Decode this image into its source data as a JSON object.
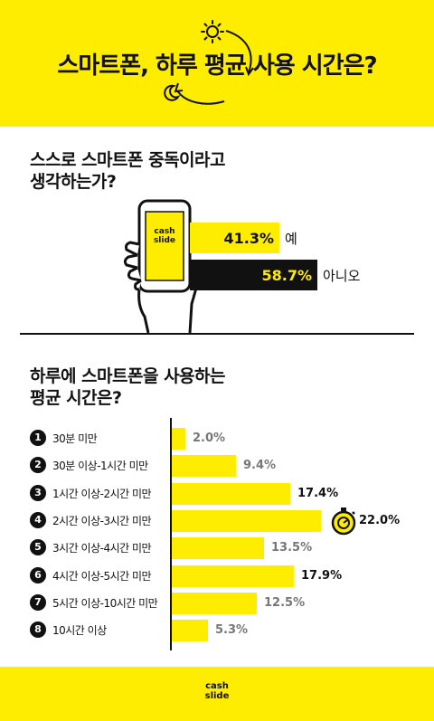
{
  "header": {
    "title": "스마트폰, 하루 평균 사용 시간은?"
  },
  "question1": {
    "title_line1": "스스로 스마트폰 중독이라고",
    "title_line2": "생각하는가?",
    "phone_brand_line1": "cash",
    "phone_brand_line2": "slide"
  },
  "question2": {
    "title_line1": "하루에 스마트폰을 사용하는",
    "title_line2": "평균 시간은?"
  },
  "chart_data": [
    {
      "type": "bar",
      "orientation": "horizontal",
      "categories": [
        "예",
        "아니오"
      ],
      "values": [
        41.3,
        58.7
      ],
      "value_labels": [
        "41.3%",
        "58.7%"
      ],
      "colors": [
        "#ffed00",
        "#111111"
      ],
      "xlim": [
        0,
        100
      ]
    },
    {
      "type": "bar",
      "orientation": "horizontal",
      "numbers": [
        "1",
        "2",
        "3",
        "4",
        "5",
        "6",
        "7",
        "8"
      ],
      "categories": [
        "30분 미만",
        "30분 이상-1시간 미만",
        "1시간 이상-2시간 미만",
        "2시간 이상-3시간 미만",
        "3시간 이상-4시간 미만",
        "4시간 이상-5시간 미만",
        "5시간 이상-10시간 미만",
        "10시간 이상"
      ],
      "values": [
        2.0,
        9.4,
        17.4,
        22.0,
        13.5,
        17.9,
        12.5,
        5.3
      ],
      "value_labels": [
        "2.0%",
        "9.4%",
        "17.4%",
        "22.0%",
        "13.5%",
        "17.9%",
        "12.5%",
        "5.3%"
      ],
      "highlight": [
        false,
        false,
        true,
        true,
        false,
        true,
        false,
        false
      ],
      "xlim": [
        0,
        25
      ]
    }
  ],
  "footer": {
    "brand_line1": "cash",
    "brand_line2": "slide"
  },
  "colors": {
    "accent": "#ffed00",
    "dark": "#111111",
    "muted": "#777777"
  },
  "icons": {
    "sun": "sun-icon",
    "moon": "moon-icon",
    "hand_phone": "hand-phone-icon",
    "timer": "timer-icon"
  }
}
